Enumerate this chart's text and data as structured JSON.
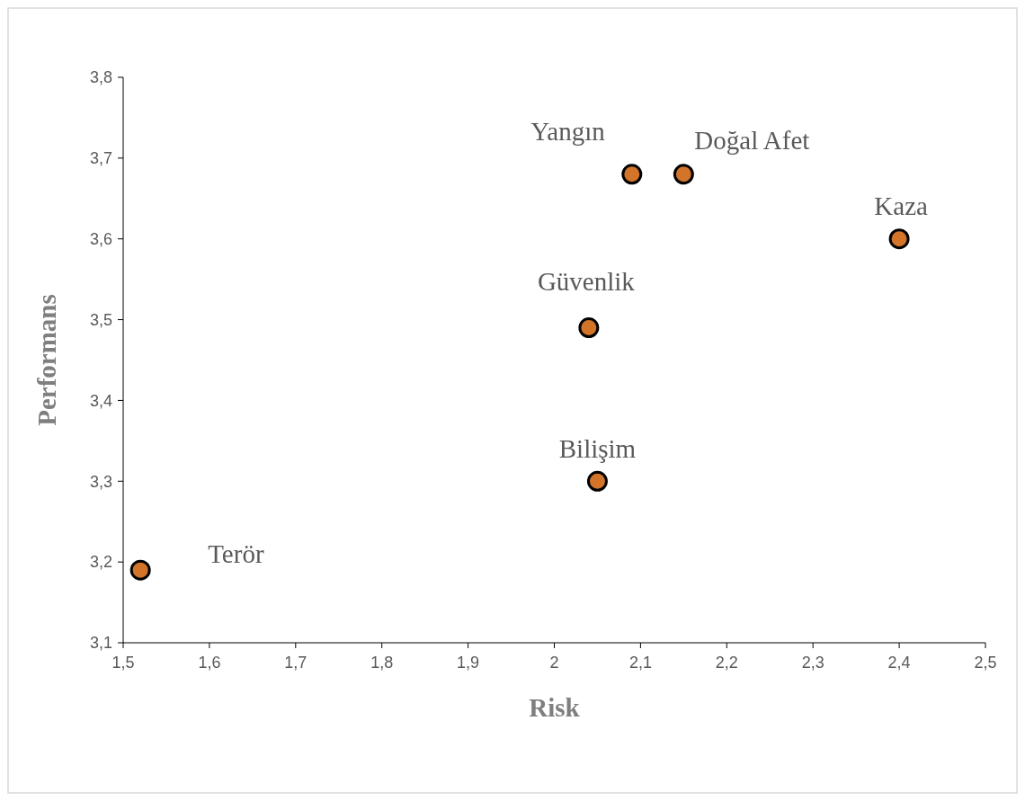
{
  "chart_data": {
    "type": "scatter",
    "xlabel": "Risk",
    "ylabel": "Performans",
    "x": [
      1.52,
      2.05,
      2.04,
      2.09,
      2.15,
      2.4
    ],
    "series": [
      {
        "color": "#d2742a",
        "values": [
          3.19,
          3.3,
          3.49,
          3.68,
          3.68,
          3.6
        ]
      }
    ],
    "xlim": [
      1.5,
      2.5
    ],
    "ylim": [
      3.1,
      3.8
    ],
    "xticks": [
      {
        "value": 1.5,
        "label": "1,5"
      },
      {
        "value": 1.6,
        "label": "1,6"
      },
      {
        "value": 1.7,
        "label": "1,7"
      },
      {
        "value": 1.8,
        "label": "1,8"
      },
      {
        "value": 1.9,
        "label": "1,9"
      },
      2,
      {
        "value": 2.1,
        "label": "2,1"
      },
      {
        "value": 2.2,
        "label": "2,2"
      },
      {
        "value": 2.3,
        "label": "2,3"
      },
      {
        "value": 2.4,
        "label": "2,4"
      },
      {
        "value": 2.5,
        "label": "2,5"
      }
    ],
    "yticks": [
      {
        "value": 3.1,
        "label": "3,1"
      },
      {
        "value": 3.2,
        "label": "3,2"
      },
      {
        "value": 3.3,
        "label": "3,3"
      },
      {
        "value": 3.4,
        "label": "3,4"
      },
      {
        "value": 3.5,
        "label": "3,5"
      },
      {
        "value": 3.6,
        "label": "3,6"
      },
      {
        "value": 3.7,
        "label": "3,7"
      },
      {
        "value": 3.8,
        "label": "3,8"
      }
    ],
    "marker": "circle",
    "grid": false,
    "annotations": [
      {
        "text": "Terör",
        "x": 1.52,
        "y": 3.19
      },
      {
        "text": "Bilişim",
        "x": 2.05,
        "y": 3.3
      },
      {
        "text": "Güvenlik",
        "x": 2.04,
        "y": 3.49
      },
      {
        "text": "Yangın",
        "x": 2.09,
        "y": 3.68
      },
      {
        "text": "Doğal Afet",
        "x": 2.15,
        "y": 3.68
      },
      {
        "text": "Kaza",
        "x": 2.4,
        "y": 3.6
      }
    ]
  }
}
